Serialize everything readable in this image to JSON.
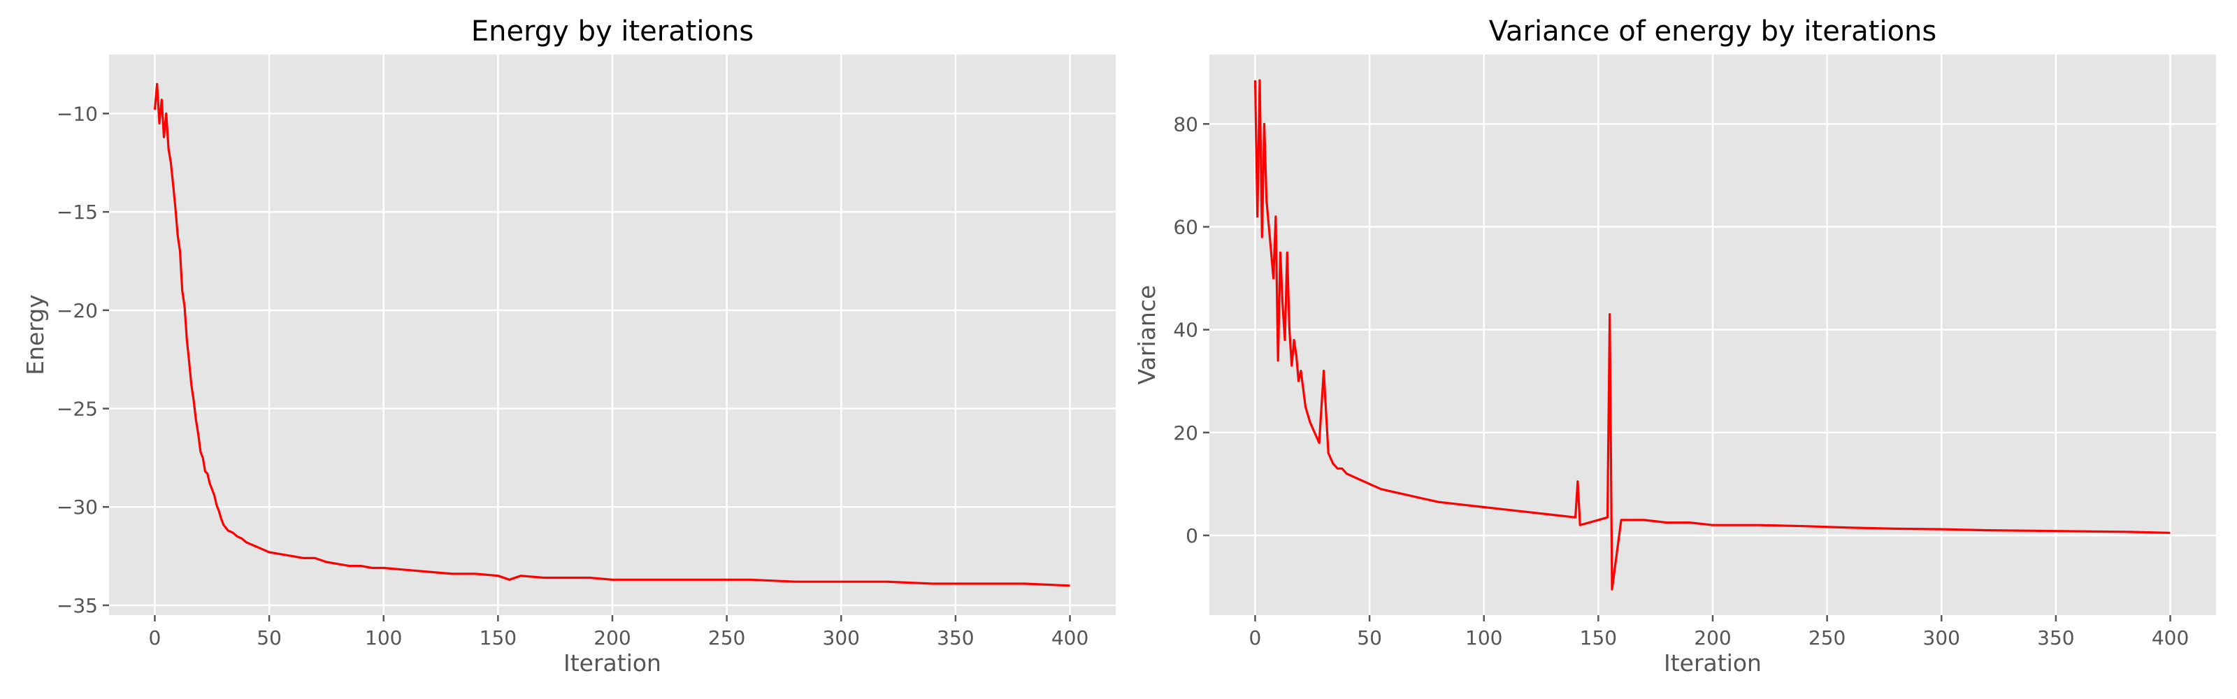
{
  "chart_data": [
    {
      "type": "line",
      "title": "Energy by iterations",
      "xlabel": "Iteration",
      "ylabel": "Energy",
      "xlim": [
        -20,
        420
      ],
      "ylim": [
        -35.5,
        -7.0
      ],
      "xticks": [
        0,
        50,
        100,
        150,
        200,
        250,
        300,
        350,
        400
      ],
      "yticks": [
        -35,
        -30,
        -25,
        -20,
        -15,
        -10
      ],
      "xtick_labels": [
        "0",
        "50",
        "100",
        "150",
        "200",
        "250",
        "300",
        "350",
        "400"
      ],
      "ytick_labels": [
        "−35",
        "−30",
        "−25",
        "−20",
        "−15",
        "−10"
      ],
      "grid": true,
      "color": "#ff0000",
      "x": [
        0,
        1,
        2,
        3,
        4,
        5,
        6,
        7,
        8,
        9,
        10,
        11,
        12,
        13,
        14,
        15,
        16,
        17,
        18,
        19,
        20,
        21,
        22,
        23,
        24,
        25,
        26,
        27,
        28,
        29,
        30,
        32,
        34,
        36,
        38,
        40,
        42,
        44,
        46,
        48,
        50,
        55,
        60,
        65,
        70,
        75,
        80,
        85,
        90,
        95,
        100,
        110,
        120,
        130,
        140,
        150,
        155,
        160,
        170,
        180,
        190,
        200,
        220,
        240,
        260,
        280,
        300,
        320,
        340,
        360,
        380,
        400
      ],
      "y": [
        -9.8,
        -8.5,
        -10.5,
        -9.3,
        -11.2,
        -10.0,
        -11.8,
        -12.5,
        -13.6,
        -14.8,
        -16.2,
        -17.0,
        -19.0,
        -19.8,
        -21.5,
        -22.6,
        -23.8,
        -24.6,
        -25.6,
        -26.3,
        -27.2,
        -27.5,
        -28.2,
        -28.3,
        -28.8,
        -29.1,
        -29.4,
        -29.9,
        -30.2,
        -30.6,
        -30.9,
        -31.2,
        -31.3,
        -31.5,
        -31.6,
        -31.8,
        -31.9,
        -32.0,
        -32.1,
        -32.2,
        -32.3,
        -32.4,
        -32.5,
        -32.6,
        -32.6,
        -32.8,
        -32.9,
        -33.0,
        -33.0,
        -33.1,
        -33.1,
        -33.2,
        -33.3,
        -33.4,
        -33.4,
        -33.5,
        -33.7,
        -33.5,
        -33.6,
        -33.6,
        -33.6,
        -33.7,
        -33.7,
        -33.7,
        -33.7,
        -33.8,
        -33.8,
        -33.8,
        -33.9,
        -33.9,
        -33.9,
        -34.0
      ]
    },
    {
      "type": "line",
      "title": "Variance of energy by iterations",
      "xlabel": "Iteration",
      "ylabel": "Variance",
      "xlim": [
        -20,
        420
      ],
      "ylim": [
        -15.5,
        93.5
      ],
      "xticks": [
        0,
        50,
        100,
        150,
        200,
        250,
        300,
        350,
        400
      ],
      "yticks": [
        0,
        20,
        40,
        60,
        80
      ],
      "xtick_labels": [
        "0",
        "50",
        "100",
        "150",
        "200",
        "250",
        "300",
        "350",
        "400"
      ],
      "ytick_labels": [
        "0",
        "20",
        "40",
        "60",
        "80"
      ],
      "grid": true,
      "color": "#ff0000",
      "x": [
        0,
        1,
        2,
        3,
        4,
        5,
        6,
        7,
        8,
        9,
        10,
        11,
        12,
        13,
        14,
        15,
        16,
        17,
        18,
        19,
        20,
        22,
        24,
        26,
        28,
        30,
        32,
        34,
        36,
        38,
        40,
        45,
        50,
        55,
        60,
        65,
        70,
        80,
        90,
        100,
        110,
        120,
        130,
        140,
        141,
        142,
        150,
        154,
        155,
        156,
        160,
        170,
        180,
        190,
        200,
        220,
        240,
        260,
        280,
        300,
        320,
        340,
        360,
        380,
        400
      ],
      "y": [
        88.5,
        62,
        88.5,
        58,
        80,
        65,
        60,
        55,
        50,
        62,
        34,
        55,
        45,
        38,
        55,
        40,
        33,
        38,
        35,
        30,
        32,
        25,
        22,
        20,
        18,
        32,
        16,
        14,
        13,
        13,
        12,
        11,
        10,
        9,
        8.5,
        8,
        7.5,
        6.5,
        6,
        5.5,
        5,
        4.5,
        4,
        3.5,
        10.5,
        2,
        3,
        3.5,
        43,
        -10.5,
        3,
        3,
        2.5,
        2.5,
        2,
        2,
        1.8,
        1.5,
        1.3,
        1.2,
        1.0,
        0.9,
        0.8,
        0.7,
        0.5
      ]
    }
  ]
}
